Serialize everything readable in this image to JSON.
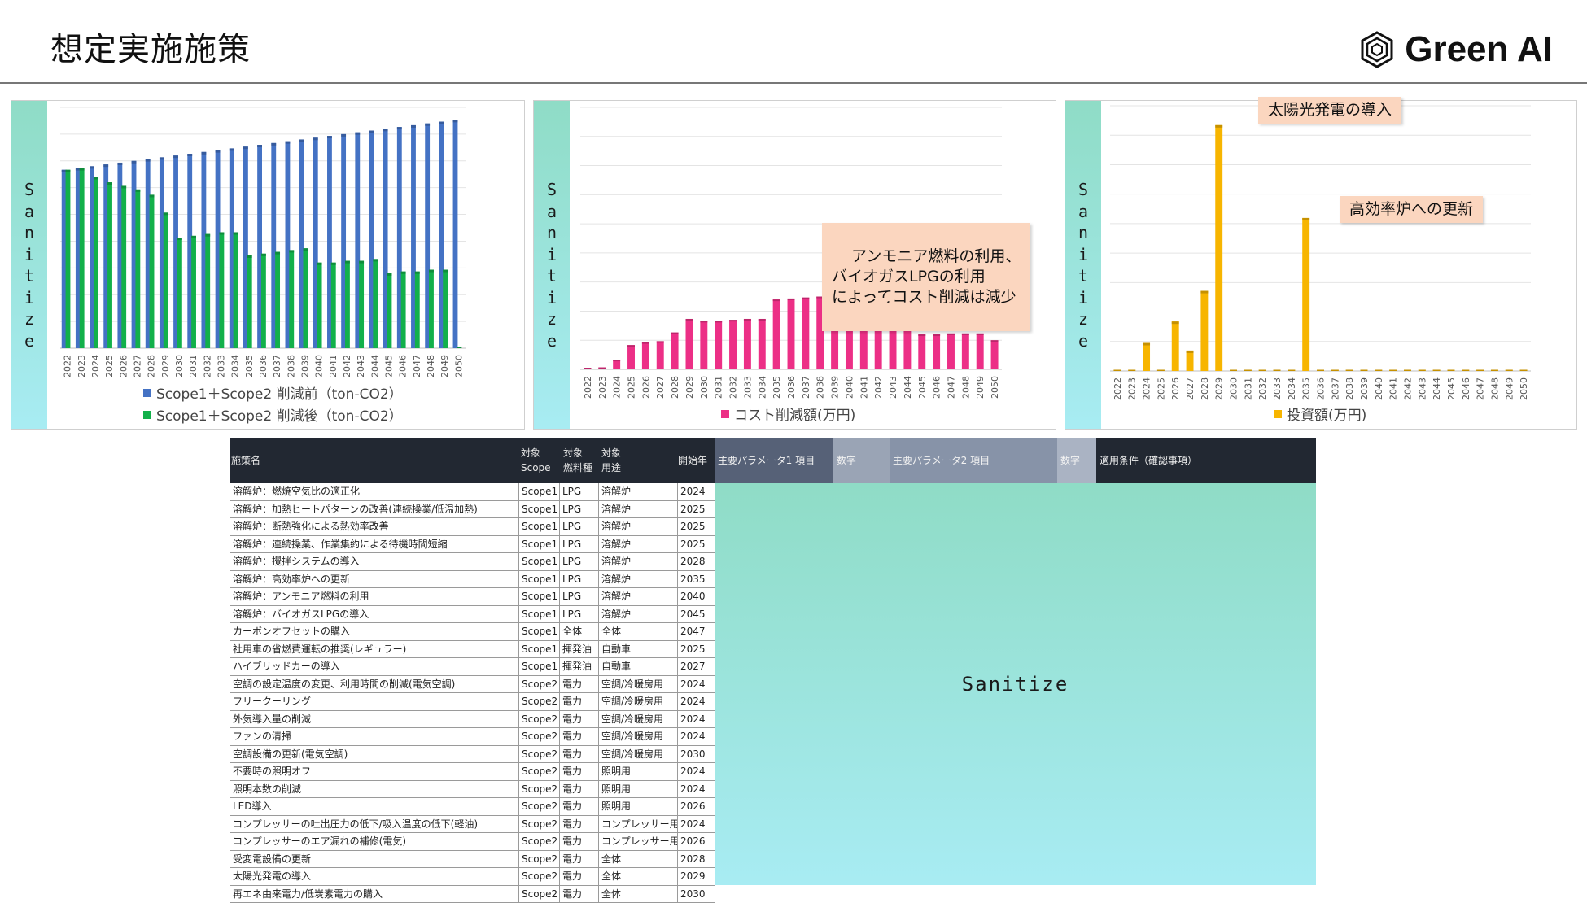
{
  "page": {
    "title": "想定実施施策",
    "brand": "Green AI"
  },
  "sanitize_label": "Sanitize",
  "colors": {
    "blue": "#4472c4",
    "green": "#12b04a",
    "pink": "#ec2f86",
    "gold": "#f7b500",
    "callout": "#fbd6bf",
    "header": "#222832"
  },
  "chart_data": [
    {
      "type": "bar",
      "categories": [
        "2022",
        "2023",
        "2024",
        "2025",
        "2026",
        "2027",
        "2028",
        "2029",
        "2030",
        "2031",
        "2032",
        "2033",
        "2034",
        "2035",
        "2036",
        "2037",
        "2038",
        "2039",
        "2040",
        "2041",
        "2042",
        "2043",
        "2044",
        "2045",
        "2046",
        "2047",
        "2048",
        "2049",
        "2050"
      ],
      "series": [
        {
          "name": "Scope1＋Scope2 削減前（ton-CO2）",
          "color": "#4472c4",
          "values": [
            100,
            101,
            102,
            103,
            104,
            105,
            106,
            107,
            108,
            109,
            110,
            111,
            112,
            113,
            114,
            115,
            116,
            117,
            118,
            119,
            120,
            121,
            122,
            123,
            124,
            125,
            126,
            127,
            128
          ]
        },
        {
          "name": "Scope1＋Scope2 削減後（ton-CO2）",
          "color": "#12b04a",
          "values": [
            100,
            101,
            96,
            93,
            91,
            89,
            86,
            76,
            62,
            63,
            64,
            65,
            65,
            52,
            53,
            54,
            55,
            56,
            48,
            48,
            49,
            49,
            50,
            42,
            43,
            43,
            44,
            44,
            0
          ]
        }
      ],
      "ylim": [
        0,
        135
      ]
    },
    {
      "type": "bar",
      "categories": [
        "2022",
        "2023",
        "2024",
        "2025",
        "2026",
        "2027",
        "2028",
        "2029",
        "2030",
        "2031",
        "2032",
        "2033",
        "2034",
        "2035",
        "2036",
        "2037",
        "2038",
        "2039",
        "2040",
        "2041",
        "2042",
        "2043",
        "2044",
        "2045",
        "2046",
        "2047",
        "2048",
        "2049",
        "2050"
      ],
      "series": [
        {
          "name": "コスト削減額(万円)",
          "color": "#ec2f86",
          "values": [
            1,
            2,
            10,
            25,
            28,
            29,
            38,
            52,
            50,
            50,
            51,
            52,
            52,
            72,
            73,
            74,
            75,
            76,
            55,
            55,
            56,
            56,
            57,
            36,
            36,
            37,
            37,
            37,
            30
          ]
        }
      ],
      "ylim": [
        0,
        270
      ],
      "annotation": "アンモニア燃料の利用、\nバイオガスLPGの利用\nによってコスト削減は減少"
    },
    {
      "type": "bar",
      "categories": [
        "2022",
        "2023",
        "2024",
        "2025",
        "2026",
        "2027",
        "2028",
        "2029",
        "2030",
        "2031",
        "2032",
        "2033",
        "2034",
        "2035",
        "2036",
        "2037",
        "2038",
        "2039",
        "2040",
        "2041",
        "2042",
        "2043",
        "2044",
        "2045",
        "2046",
        "2047",
        "2048",
        "2049",
        "2050"
      ],
      "series": [
        {
          "name": "投資額(万円)",
          "color": "#f7b500",
          "values": [
            0,
            0,
            55,
            0,
            97,
            40,
            157,
            482,
            0,
            0,
            0,
            0,
            0,
            300,
            0,
            0,
            0,
            0,
            0,
            0,
            0,
            0,
            0,
            0,
            0,
            0,
            0,
            0,
            0
          ]
        }
      ],
      "ylim": [
        0,
        520
      ],
      "annotations": [
        "太陽光発電の導入",
        "高効率炉への更新"
      ]
    }
  ],
  "table": {
    "headers": [
      {
        "text": "施策名"
      },
      {
        "text": "対象\nScope"
      },
      {
        "text": "対象\n燃料種"
      },
      {
        "text": "対象\n用途"
      },
      {
        "text": "開始年"
      }
    ],
    "param_headers": [
      "主要パラメータ1 項目",
      "数字",
      "主要パラメータ2 項目",
      "数字",
      "適用条件（確認事項）"
    ],
    "rows": [
      [
        "溶解炉：燃焼空気比の適正化",
        "Scope1",
        "LPG",
        "溶解炉",
        "2024"
      ],
      [
        "溶解炉：加熱ヒートパターンの改善(連続操業/低温加熱)",
        "Scope1",
        "LPG",
        "溶解炉",
        "2025"
      ],
      [
        "溶解炉：断熱強化による熱効率改善",
        "Scope1",
        "LPG",
        "溶解炉",
        "2025"
      ],
      [
        "溶解炉：連続操業、作業集約による待機時間短縮",
        "Scope1",
        "LPG",
        "溶解炉",
        "2025"
      ],
      [
        "溶解炉：攪拌システムの導入",
        "Scope1",
        "LPG",
        "溶解炉",
        "2028"
      ],
      [
        "溶解炉：高効率炉への更新",
        "Scope1",
        "LPG",
        "溶解炉",
        "2035"
      ],
      [
        "溶解炉：アンモニア燃料の利用",
        "Scope1",
        "LPG",
        "溶解炉",
        "2040"
      ],
      [
        "溶解炉：バイオガスLPGの導入",
        "Scope1",
        "LPG",
        "溶解炉",
        "2045"
      ],
      [
        "カーボンオフセットの購入",
        "Scope1",
        "全体",
        "全体",
        "2047"
      ],
      [
        "社用車の省燃費運転の推奨(レギュラー)",
        "Scope1",
        "揮発油",
        "自動車",
        "2025"
      ],
      [
        "ハイブリッドカーの導入",
        "Scope1",
        "揮発油",
        "自動車",
        "2027"
      ],
      [
        "空調の設定温度の変更、利用時間の削減(電気空調)",
        "Scope2",
        "電力",
        "空調/冷暖房用",
        "2024"
      ],
      [
        "フリークーリング",
        "Scope2",
        "電力",
        "空調/冷暖房用",
        "2024"
      ],
      [
        "外気導入量の削減",
        "Scope2",
        "電力",
        "空調/冷暖房用",
        "2024"
      ],
      [
        "ファンの清掃",
        "Scope2",
        "電力",
        "空調/冷暖房用",
        "2024"
      ],
      [
        "空調設備の更新(電気空調)",
        "Scope2",
        "電力",
        "空調/冷暖房用",
        "2030"
      ],
      [
        "不要時の照明オフ",
        "Scope2",
        "電力",
        "照明用",
        "2024"
      ],
      [
        "照明本数の削減",
        "Scope2",
        "電力",
        "照明用",
        "2024"
      ],
      [
        "LED導入",
        "Scope2",
        "電力",
        "照明用",
        "2026"
      ],
      [
        "コンプレッサーの吐出圧力の低下/吸入温度の低下(軽油)",
        "Scope2",
        "電力",
        "コンプレッサー用",
        "2024"
      ],
      [
        "コンプレッサーのエア漏れの補修(電気)",
        "Scope2",
        "電力",
        "コンプレッサー用",
        "2026"
      ],
      [
        "受変電設備の更新",
        "Scope2",
        "電力",
        "全体",
        "2028"
      ],
      [
        "太陽光発電の導入",
        "Scope2",
        "電力",
        "全体",
        "2029"
      ],
      [
        "再エネ由来電力/低炭素電力の購入",
        "Scope2",
        "電力",
        "全体",
        "2030"
      ]
    ]
  }
}
